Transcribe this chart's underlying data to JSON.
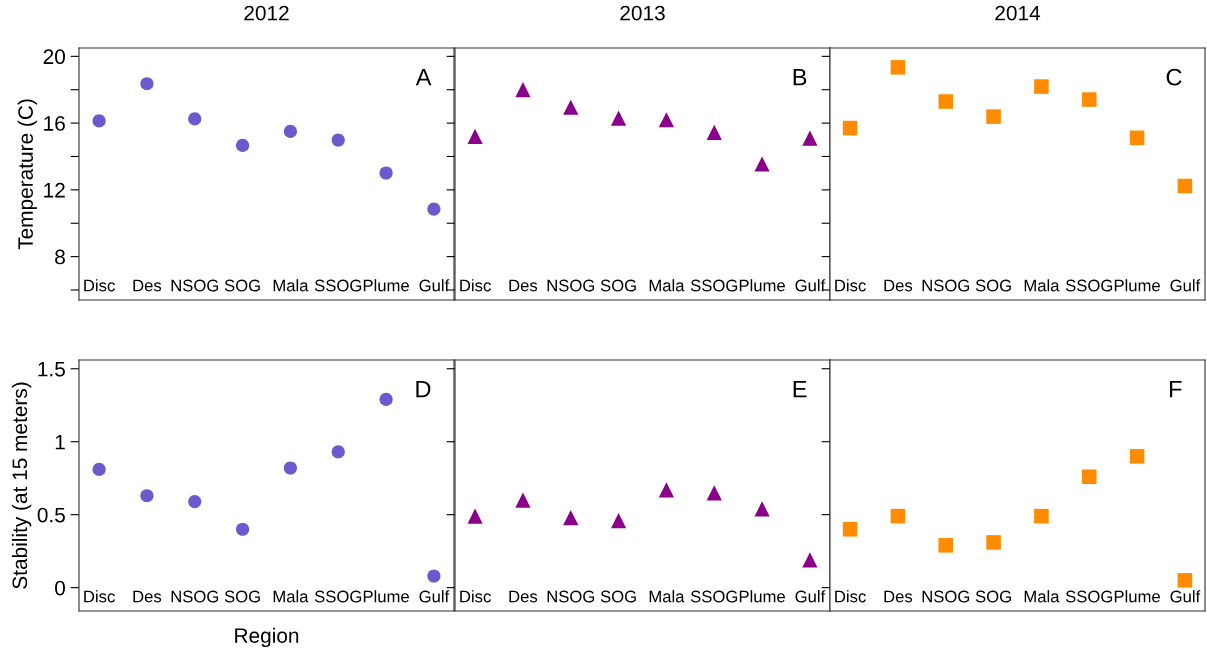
{
  "chart_data": [
    {
      "type": "scatter",
      "title": "2012",
      "ylabel": "Temperature (C)",
      "annotations": [
        "A"
      ],
      "marker": "circle",
      "tick_labels": "xy",
      "categories": [
        "Disc",
        "Des",
        "NSOG",
        "SOG",
        "Mala",
        "SSOG",
        "Plume",
        "Gulf"
      ],
      "series": [
        {
          "color": "#6a5acd",
          "values": [
            16.13,
            18.36,
            16.25,
            14.66,
            15.5,
            14.98,
            13.01,
            10.85
          ]
        }
      ],
      "ylim": [
        5.4,
        20.5
      ],
      "yticks": [
        20,
        {
          "value": 18,
          "label": null
        },
        16,
        {
          "value": 14,
          "label": null
        },
        12,
        {
          "value": 10,
          "label": null
        },
        8,
        {
          "value": 6,
          "label": null
        }
      ]
    },
    {
      "type": "scatter",
      "title": "2013",
      "annotations": [
        "B"
      ],
      "marker": "triangle",
      "tick_labels": "x",
      "categories": [
        "Disc",
        "Des",
        "NSOG",
        "SOG",
        "Mala",
        "SSOG",
        "Plume",
        "Gulf"
      ],
      "series": [
        {
          "color": "#8b008b",
          "values": [
            15.2,
            18.0,
            16.95,
            16.3,
            16.2,
            15.45,
            13.55,
            15.1
          ]
        }
      ],
      "ylim": [
        5.4,
        20.5
      ],
      "yticks": [
        20,
        18,
        16,
        14,
        12,
        10,
        8,
        6
      ]
    },
    {
      "type": "scatter",
      "title": "2014",
      "annotations": [
        "C"
      ],
      "marker": "square",
      "tick_labels": "x",
      "categories": [
        "Disc",
        "Des",
        "NSOG",
        "SOG",
        "Mala",
        "SSOG",
        "Plume",
        "Gulf"
      ],
      "series": [
        {
          "color": "#ff8c00",
          "values": [
            15.7,
            19.34,
            17.29,
            16.39,
            18.19,
            17.41,
            15.12,
            12.23
          ]
        }
      ],
      "ylim": [
        5.4,
        20.5
      ],
      "yticks": [
        20,
        18,
        16,
        14,
        12,
        10,
        8,
        6
      ]
    },
    {
      "type": "scatter",
      "xlabel": "Region",
      "ylabel": "Stability (at 15 meters)",
      "annotations": [
        "D"
      ],
      "marker": "circle",
      "tick_labels": "xy",
      "categories": [
        "Disc",
        "Des",
        "NSOG",
        "SOG",
        "Mala",
        "SSOG",
        "Plume",
        "Gulf"
      ],
      "series": [
        {
          "color": "#6a5acd",
          "values": [
            0.81,
            0.63,
            0.59,
            0.4,
            0.82,
            0.93,
            1.29,
            0.08
          ]
        }
      ],
      "ylim": [
        -0.16,
        1.56
      ],
      "yticks": [
        0,
        0.5,
        1,
        1.5
      ]
    },
    {
      "type": "scatter",
      "annotations": [
        "E"
      ],
      "marker": "triangle",
      "tick_labels": "x",
      "categories": [
        "Disc",
        "Des",
        "NSOG",
        "SOG",
        "Mala",
        "SSOG",
        "Plume",
        "Gulf"
      ],
      "series": [
        {
          "color": "#8b008b",
          "values": [
            0.49,
            0.6,
            0.48,
            0.46,
            0.67,
            0.65,
            0.54,
            0.19
          ]
        }
      ],
      "ylim": [
        -0.16,
        1.56
      ],
      "yticks": [
        0,
        0.5,
        1,
        1.5
      ]
    },
    {
      "type": "scatter",
      "annotations": [
        "F"
      ],
      "marker": "square",
      "tick_labels": "x",
      "categories": [
        "Disc",
        "Des",
        "NSOG",
        "SOG",
        "Mala",
        "SSOG",
        "Plume",
        "Gulf"
      ],
      "series": [
        {
          "color": "#ff8c00",
          "values": [
            0.4,
            0.49,
            0.29,
            0.31,
            0.49,
            0.76,
            0.9,
            0.05
          ]
        }
      ],
      "ylim": [
        -0.16,
        1.56
      ],
      "yticks": [
        0,
        0.5,
        1,
        1.5
      ]
    }
  ]
}
